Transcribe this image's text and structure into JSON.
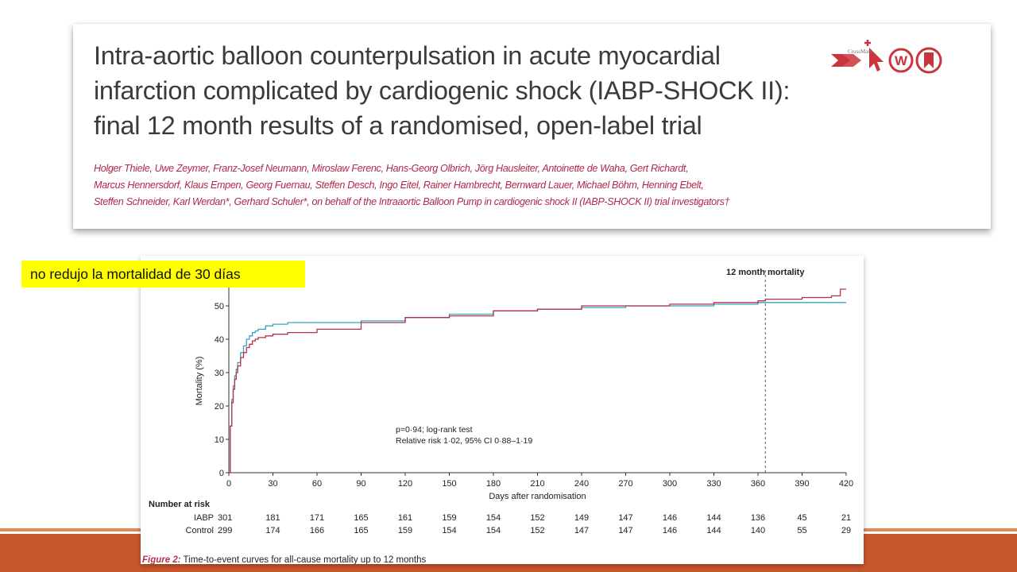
{
  "paper": {
    "title_lines": [
      "Intra-aortic balloon counterpulsation in acute myocardial",
      "infarction complicated by cardiogenic shock (IABP-SHOCK II):",
      "final 12 month results of a randomised, open-label trial"
    ],
    "authors_lines": [
      "Holger Thiele, Uwe Zeymer, Franz-Josef Neumann, Miroslaw Ferenc, Hans-Georg Olbrich, Jörg Hausleiter, Antoinette de Waha, Gert Richardt,",
      "Marcus Hennersdorf, Klaus Empen, Georg Fuernau, Steffen Desch, Ingo Eitel, Rainer Hambrecht, Bernward Lauer, Michael Böhm, Henning Ebelt,",
      "Steffen Schneider, Karl Werdan*, Gerhard Schuler*, on behalf of the Intraaortic Balloon Pump in cardiogenic shock II (IABP-SHOCK II) trial investigators†"
    ],
    "crossmark_label": "CrossMark",
    "icons": [
      "forward-arrow-icon",
      "cursor-click-icon",
      "at-symbol-icon",
      "crossmark-icon"
    ],
    "accent_color": "#b0294a"
  },
  "callout": {
    "text": "no redujo la mortalidad de 30 días",
    "background": "#ffff00"
  },
  "chart_data": {
    "type": "line",
    "xlabel": "Days after randomisation",
    "ylabel": "Mortality (%)",
    "xlim": [
      0,
      420
    ],
    "ylim": [
      0,
      55
    ],
    "xticks": [
      0,
      30,
      60,
      90,
      120,
      150,
      180,
      210,
      240,
      270,
      300,
      330,
      360,
      390,
      420
    ],
    "yticks": [
      0,
      10,
      20,
      30,
      40,
      50
    ],
    "annotation_line": {
      "x": 365,
      "label": "12 month mortality"
    },
    "stats_text": [
      "p=0·94; log-rank test",
      "Relative risk 1·02, 95% CI 0·88–1·19"
    ],
    "series": [
      {
        "name": "IABP",
        "color": "#3aa3c2",
        "x": [
          0,
          1,
          2,
          3,
          4,
          5,
          6,
          8,
          10,
          12,
          14,
          16,
          18,
          20,
          25,
          30,
          40,
          60,
          90,
          120,
          150,
          180,
          210,
          240,
          270,
          300,
          330,
          360,
          365,
          390,
          420
        ],
        "y": [
          0,
          14,
          22,
          26,
          29,
          31,
          33,
          36,
          38,
          40,
          41,
          42,
          42.5,
          43,
          44,
          44.5,
          45,
          45,
          45.5,
          46.5,
          47.5,
          48.5,
          49,
          49.5,
          50,
          50,
          50.5,
          51,
          51,
          51,
          51
        ]
      },
      {
        "name": "Control",
        "color": "#b5334a",
        "x": [
          0,
          1,
          2,
          3,
          4,
          5,
          6,
          8,
          10,
          12,
          14,
          16,
          18,
          20,
          25,
          30,
          40,
          60,
          90,
          120,
          150,
          180,
          210,
          240,
          270,
          300,
          330,
          360,
          365,
          390,
          410,
          416,
          420
        ],
        "y": [
          0,
          14,
          21,
          25,
          28,
          30,
          32,
          34.5,
          36,
          37.5,
          38.5,
          39.5,
          40,
          40.5,
          41,
          41.5,
          42,
          43,
          45,
          46.5,
          47,
          48.5,
          49,
          50,
          50,
          50.5,
          51,
          51.5,
          52,
          52.5,
          53,
          55,
          55
        ]
      }
    ],
    "risk_table": {
      "header": "Number at risk",
      "rows": [
        {
          "label": "IABP",
          "values": [
            301,
            181,
            171,
            165,
            161,
            159,
            154,
            152,
            149,
            147,
            146,
            144,
            136,
            45,
            21
          ]
        },
        {
          "label": "Control",
          "values": [
            299,
            174,
            166,
            165,
            159,
            154,
            154,
            152,
            147,
            147,
            146,
            144,
            140,
            55,
            29
          ]
        }
      ]
    },
    "caption_bold": "Figure 2:",
    "caption": "Time-to-event curves for all-cause mortality up to 12 months"
  }
}
